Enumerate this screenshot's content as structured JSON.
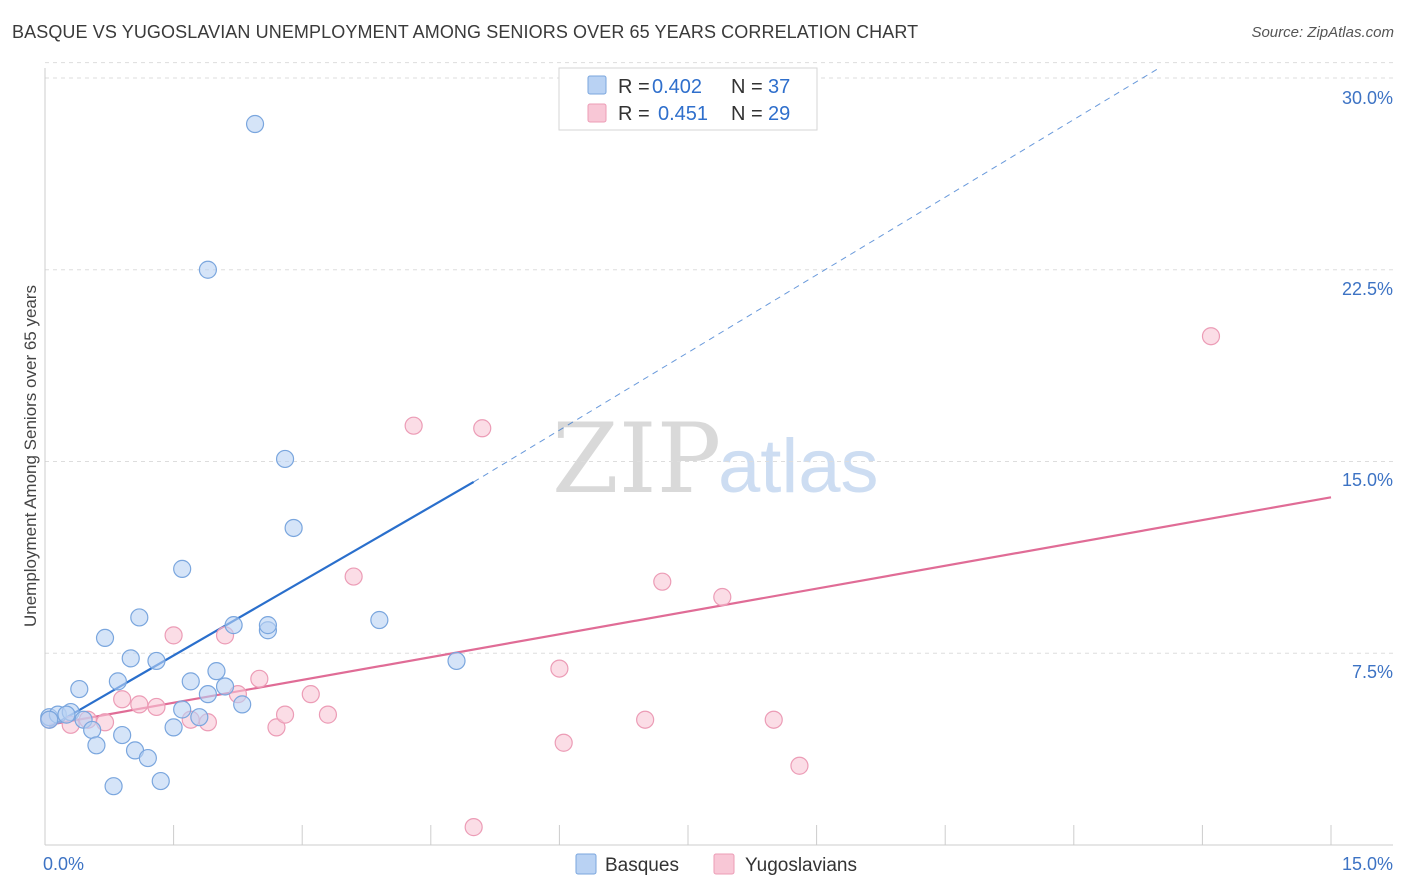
{
  "title": "BASQUE VS YUGOSLAVIAN UNEMPLOYMENT AMONG SENIORS OVER 65 YEARS CORRELATION CHART",
  "source": "Source: ZipAtlas.com",
  "watermark": {
    "zip": "ZIP",
    "atlas": "atlas"
  },
  "colors": {
    "blue_fill": "#b9d2f3",
    "blue_stroke": "#7aa6de",
    "blue_line": "#2a6fcc",
    "pink_fill": "#f8c7d6",
    "pink_stroke": "#ec9cb6",
    "pink_line": "#e06c96",
    "grid": "#dddddd",
    "tick_label": "#3d73c4"
  },
  "legend": {
    "rows": [
      {
        "r_label": "R =",
        "r_value": "0.402",
        "n_label": "N =",
        "n_value": "37",
        "series": "Basques"
      },
      {
        "r_label": "R =",
        "r_value": "0.451",
        "n_label": "N =",
        "n_value": "29",
        "series": "Yugoslavians"
      }
    ]
  },
  "chart_data": {
    "type": "scatter",
    "title": "BASQUE VS YUGOSLAVIAN UNEMPLOYMENT AMONG SENIORS OVER 65 YEARS CORRELATION CHART",
    "xlabel": "",
    "ylabel": "Unemployment Among Seniors over 65 years",
    "xlim": [
      0,
      15
    ],
    "ylim": [
      0,
      30
    ],
    "x_tick_labels": [
      "0.0%",
      "15.0%"
    ],
    "y_ticks": [
      7.5,
      15.0,
      22.5,
      30.0
    ],
    "y_tick_labels": [
      "7.5%",
      "15.0%",
      "22.5%",
      "30.0%"
    ],
    "grid": true,
    "series": [
      {
        "name": "Basques",
        "points": [
          [
            0.05,
            5.0
          ],
          [
            0.15,
            5.1
          ],
          [
            0.3,
            5.2
          ],
          [
            0.4,
            6.1
          ],
          [
            0.45,
            4.9
          ],
          [
            0.55,
            4.5
          ],
          [
            0.6,
            3.9
          ],
          [
            0.7,
            8.1
          ],
          [
            0.8,
            2.3
          ],
          [
            0.85,
            6.4
          ],
          [
            0.9,
            4.3
          ],
          [
            1.0,
            7.3
          ],
          [
            1.05,
            3.7
          ],
          [
            1.1,
            8.9
          ],
          [
            1.2,
            3.4
          ],
          [
            1.3,
            7.2
          ],
          [
            1.35,
            2.5
          ],
          [
            1.5,
            4.6
          ],
          [
            1.6,
            5.3
          ],
          [
            1.6,
            10.8
          ],
          [
            1.7,
            6.4
          ],
          [
            1.8,
            5.0
          ],
          [
            1.9,
            5.9
          ],
          [
            1.9,
            22.5
          ],
          [
            2.0,
            6.8
          ],
          [
            2.1,
            6.2
          ],
          [
            2.2,
            8.6
          ],
          [
            2.3,
            5.5
          ],
          [
            2.45,
            28.2
          ],
          [
            2.6,
            8.4
          ],
          [
            2.6,
            8.6
          ],
          [
            2.8,
            15.1
          ],
          [
            2.9,
            12.4
          ],
          [
            3.9,
            8.8
          ],
          [
            4.8,
            7.2
          ],
          [
            0.25,
            5.1
          ],
          [
            0.05,
            4.9
          ]
        ],
        "trend": {
          "x0": 0.05,
          "y0": 4.6,
          "x1": 5.0,
          "y1": 14.2,
          "dash_to_x": 13.0,
          "dash_to_y": 30.4
        }
      },
      {
        "name": "Yugoslavians",
        "points": [
          [
            0.05,
            4.9
          ],
          [
            0.3,
            4.7
          ],
          [
            0.5,
            4.9
          ],
          [
            0.7,
            4.8
          ],
          [
            0.9,
            5.7
          ],
          [
            1.1,
            5.5
          ],
          [
            1.3,
            5.4
          ],
          [
            1.5,
            8.2
          ],
          [
            1.7,
            4.9
          ],
          [
            1.9,
            4.8
          ],
          [
            2.1,
            8.2
          ],
          [
            2.25,
            5.9
          ],
          [
            2.5,
            6.5
          ],
          [
            2.7,
            4.6
          ],
          [
            2.8,
            5.1
          ],
          [
            3.1,
            5.9
          ],
          [
            3.3,
            5.1
          ],
          [
            3.6,
            10.5
          ],
          [
            4.3,
            16.4
          ],
          [
            5.0,
            0.7
          ],
          [
            5.1,
            16.3
          ],
          [
            6.0,
            6.9
          ],
          [
            6.05,
            4.0
          ],
          [
            7.0,
            4.9
          ],
          [
            7.2,
            10.3
          ],
          [
            7.9,
            9.7
          ],
          [
            8.5,
            4.9
          ],
          [
            8.8,
            3.1
          ],
          [
            13.6,
            19.9
          ]
        ],
        "trend": {
          "x0": 0.05,
          "y0": 4.7,
          "x1": 15.0,
          "y1": 13.6
        }
      }
    ]
  }
}
